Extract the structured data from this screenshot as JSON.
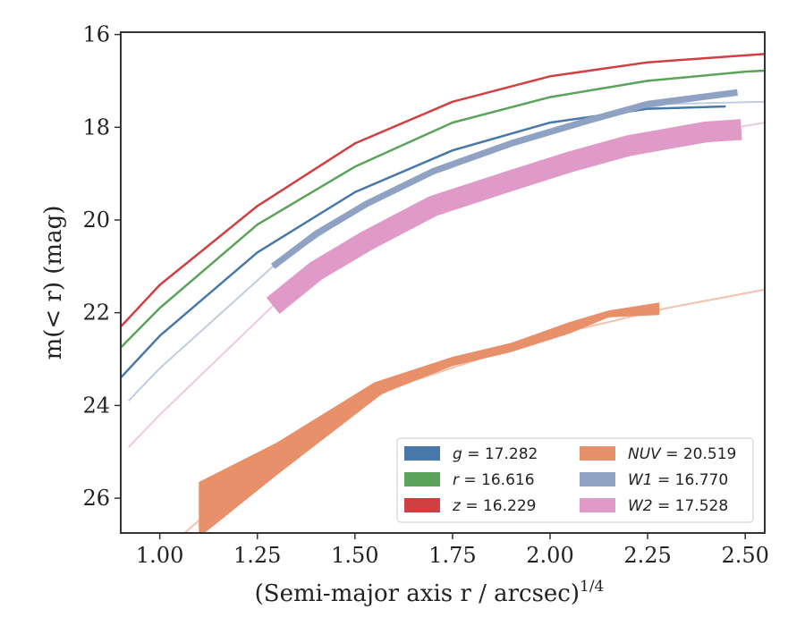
{
  "chart_data": {
    "type": "line",
    "xlabel": "(Semi-major axis r / arcsec)",
    "xlabel_exponent": "1/4",
    "ylabel": "m(< r) (mag)",
    "xlim": [
      0.9,
      2.55
    ],
    "ylim": [
      26.75,
      15.95
    ],
    "y_inverted": true,
    "x_ticks": [
      1.0,
      1.25,
      1.5,
      1.75,
      2.0,
      2.25,
      2.5
    ],
    "x_tick_labels": [
      "1.00",
      "1.25",
      "1.50",
      "1.75",
      "2.00",
      "2.25",
      "2.50"
    ],
    "y_ticks": [
      16,
      18,
      20,
      22,
      24,
      26
    ],
    "y_tick_labels": [
      "16",
      "18",
      "20",
      "22",
      "24",
      "26"
    ],
    "grid": false,
    "legend_position": "lower-right",
    "series": [
      {
        "name": "g",
        "legend_label": "g = 17.282",
        "color": "#4878a8",
        "band_width": 0.02,
        "points": [
          [
            0.9,
            23.4
          ],
          [
            1.0,
            22.5
          ],
          [
            1.25,
            20.7
          ],
          [
            1.5,
            19.4
          ],
          [
            1.75,
            18.5
          ],
          [
            2.0,
            17.9
          ],
          [
            2.25,
            17.6
          ],
          [
            2.45,
            17.55
          ]
        ],
        "tail": []
      },
      {
        "name": "r",
        "legend_label": "r = 16.616",
        "color": "#5ba35b",
        "band_width": 0.02,
        "points": [
          [
            0.9,
            22.75
          ],
          [
            1.0,
            21.9
          ],
          [
            1.25,
            20.1
          ],
          [
            1.5,
            18.85
          ],
          [
            1.75,
            17.9
          ],
          [
            2.0,
            17.35
          ],
          [
            2.25,
            17.0
          ],
          [
            2.5,
            16.8
          ],
          [
            2.55,
            16.78
          ]
        ],
        "tail": []
      },
      {
        "name": "z",
        "legend_label": "z = 16.229",
        "color": "#d04040",
        "band_width": 0.02,
        "points": [
          [
            0.9,
            22.3
          ],
          [
            1.0,
            21.4
          ],
          [
            1.25,
            19.7
          ],
          [
            1.5,
            18.35
          ],
          [
            1.75,
            17.45
          ],
          [
            2.0,
            16.9
          ],
          [
            2.25,
            16.6
          ],
          [
            2.5,
            16.45
          ],
          [
            2.55,
            16.42
          ]
        ],
        "tail": []
      },
      {
        "name": "NUV",
        "legend_label": "NUV = 20.519",
        "color": "#e8906a",
        "band_upper": [
          [
            1.1,
            25.65
          ],
          [
            1.3,
            24.8
          ],
          [
            1.55,
            23.5
          ],
          [
            1.75,
            22.95
          ],
          [
            1.9,
            22.65
          ],
          [
            2.05,
            22.2
          ],
          [
            2.15,
            21.95
          ],
          [
            2.28,
            21.78
          ]
        ],
        "band_lower": [
          [
            1.1,
            26.85
          ],
          [
            1.3,
            25.5
          ],
          [
            1.57,
            23.75
          ],
          [
            1.75,
            23.15
          ],
          [
            1.9,
            22.85
          ],
          [
            2.05,
            22.45
          ],
          [
            2.15,
            22.1
          ],
          [
            2.28,
            22.05
          ]
        ],
        "tail": [
          [
            1.05,
            26.85
          ],
          [
            1.3,
            25.0
          ],
          [
            1.6,
            23.6
          ],
          [
            2.0,
            22.5
          ],
          [
            2.3,
            21.9
          ],
          [
            2.55,
            21.5
          ]
        ]
      },
      {
        "name": "W1",
        "legend_label": "W1 = 16.770",
        "color": "#8fa2c4",
        "band_width": 0.14,
        "points": [
          [
            1.29,
            21.0
          ],
          [
            1.4,
            20.3
          ],
          [
            1.53,
            19.65
          ],
          [
            1.7,
            18.95
          ],
          [
            1.9,
            18.35
          ],
          [
            2.1,
            17.85
          ],
          [
            2.25,
            17.5
          ],
          [
            2.48,
            17.25
          ]
        ],
        "tail": [
          [
            0.92,
            23.9
          ],
          [
            1.0,
            23.2
          ],
          [
            1.29,
            21.0
          ],
          [
            1.53,
            19.65
          ],
          [
            1.7,
            18.95
          ],
          [
            1.9,
            18.35
          ],
          [
            2.1,
            17.85
          ],
          [
            2.3,
            17.5
          ],
          [
            2.55,
            17.45
          ]
        ]
      },
      {
        "name": "W2",
        "legend_label": "W2 = 17.528",
        "color": "#e09ac8",
        "band_width": 0.45,
        "points": [
          [
            1.29,
            21.85
          ],
          [
            1.4,
            21.1
          ],
          [
            1.53,
            20.45
          ],
          [
            1.7,
            19.7
          ],
          [
            1.9,
            19.15
          ],
          [
            2.05,
            18.75
          ],
          [
            2.2,
            18.4
          ],
          [
            2.4,
            18.1
          ],
          [
            2.49,
            18.05
          ]
        ],
        "tail": [
          [
            0.92,
            24.9
          ],
          [
            1.0,
            24.2
          ],
          [
            1.29,
            21.85
          ],
          [
            1.53,
            20.45
          ],
          [
            1.7,
            19.7
          ],
          [
            2.0,
            18.85
          ],
          [
            2.3,
            18.25
          ],
          [
            2.55,
            17.9
          ]
        ]
      }
    ]
  }
}
